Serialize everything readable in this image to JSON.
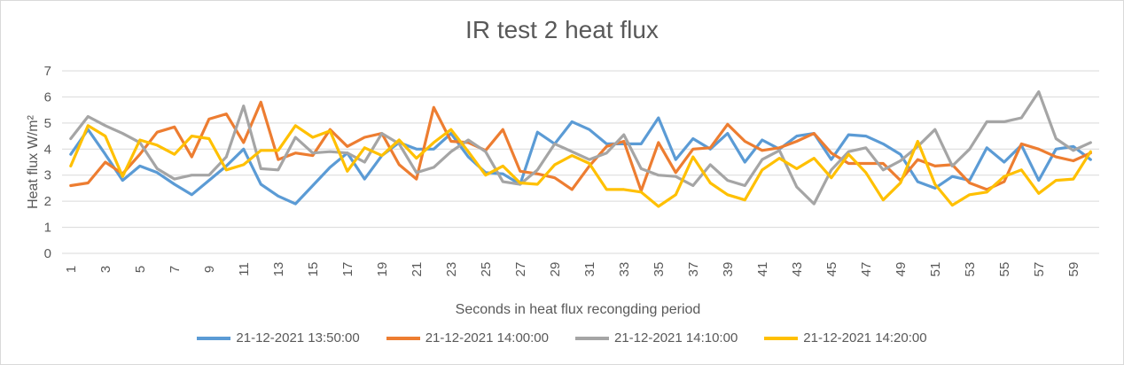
{
  "chart_data": {
    "type": "line",
    "title": "IR test 2 heat flux",
    "xlabel": "Seconds in heat flux recongding period",
    "ylabel": "Heat flux W/m²",
    "ylim": [
      0,
      7
    ],
    "yticks": [
      "0",
      "1",
      "2",
      "3",
      "4",
      "5",
      "6",
      "7"
    ],
    "x": [
      1,
      2,
      3,
      4,
      5,
      6,
      7,
      8,
      9,
      10,
      11,
      12,
      13,
      14,
      15,
      16,
      17,
      18,
      19,
      20,
      21,
      22,
      23,
      24,
      25,
      26,
      27,
      28,
      29,
      30,
      31,
      32,
      33,
      34,
      35,
      36,
      37,
      38,
      39,
      40,
      41,
      42,
      43,
      44,
      45,
      46,
      47,
      48,
      49,
      50,
      51,
      52,
      53,
      54,
      55,
      56,
      57,
      58,
      59,
      60
    ],
    "xtick_labels": [
      "1",
      "3",
      "5",
      "7",
      "9",
      "11",
      "13",
      "15",
      "17",
      "19",
      "21",
      "23",
      "25",
      "27",
      "29",
      "31",
      "33",
      "35",
      "37",
      "39",
      "41",
      "43",
      "45",
      "47",
      "49",
      "51",
      "53",
      "55",
      "57",
      "59"
    ],
    "grid": true,
    "legend_position": "bottom",
    "series": [
      {
        "name": "21-12-2021 13:50:00",
        "color": "#5b9bd5",
        "values": [
          3.8,
          4.75,
          3.8,
          2.8,
          3.35,
          3.1,
          2.65,
          2.25,
          2.8,
          3.35,
          4.0,
          2.65,
          2.2,
          1.9,
          2.6,
          3.3,
          3.85,
          2.85,
          3.75,
          4.25,
          4.0,
          4.0,
          4.6,
          3.7,
          3.1,
          3.05,
          2.65,
          4.65,
          4.2,
          5.05,
          4.75,
          4.2,
          4.2,
          4.2,
          5.2,
          3.6,
          4.4,
          4.0,
          4.6,
          3.5,
          4.35,
          4.0,
          4.5,
          4.6,
          3.6,
          4.55,
          4.5,
          4.2,
          3.8,
          2.75,
          2.5,
          2.95,
          2.8,
          4.05,
          3.5,
          4.15,
          2.8,
          4.0,
          4.1,
          3.6
        ]
      },
      {
        "name": "21-12-2021 14:00:00",
        "color": "#ed7d31",
        "values": [
          2.6,
          2.7,
          3.5,
          3.05,
          3.8,
          4.65,
          4.85,
          3.7,
          5.15,
          5.35,
          4.25,
          5.8,
          3.6,
          3.85,
          3.75,
          4.75,
          4.1,
          4.45,
          4.6,
          3.4,
          2.85,
          5.6,
          4.3,
          4.25,
          3.95,
          4.75,
          3.15,
          3.05,
          2.9,
          2.45,
          3.35,
          4.1,
          4.3,
          2.4,
          4.25,
          3.1,
          4.0,
          4.05,
          4.95,
          4.3,
          3.95,
          4.05,
          4.3,
          4.6,
          3.85,
          3.45,
          3.45,
          3.45,
          2.8,
          3.6,
          3.35,
          3.4,
          2.7,
          2.45,
          2.75,
          4.2,
          4.0,
          3.7,
          3.55,
          3.85
        ]
      },
      {
        "name": "21-12-2021 14:10:00",
        "color": "#a5a5a5",
        "values": [
          4.4,
          5.25,
          4.9,
          4.6,
          4.25,
          3.25,
          2.85,
          3.0,
          3.0,
          3.7,
          5.65,
          3.25,
          3.2,
          4.45,
          3.85,
          3.9,
          3.85,
          3.5,
          4.6,
          4.2,
          3.1,
          3.3,
          3.9,
          4.35,
          3.9,
          2.75,
          2.65,
          3.2,
          4.2,
          3.9,
          3.6,
          3.85,
          4.55,
          3.25,
          3.0,
          2.95,
          2.6,
          3.4,
          2.8,
          2.6,
          3.6,
          3.95,
          2.55,
          1.9,
          3.2,
          3.9,
          4.05,
          3.2,
          3.55,
          4.1,
          4.75,
          3.35,
          4.0,
          5.05,
          5.05,
          5.2,
          6.2,
          4.4,
          3.95,
          4.25
        ]
      },
      {
        "name": "21-12-2021 14:20:00",
        "color": "#ffc000",
        "values": [
          3.35,
          4.9,
          4.5,
          2.95,
          4.35,
          4.15,
          3.8,
          4.5,
          4.4,
          3.2,
          3.4,
          3.95,
          3.95,
          4.9,
          4.45,
          4.7,
          3.15,
          4.05,
          3.75,
          4.35,
          3.65,
          4.25,
          4.75,
          3.9,
          3.0,
          3.35,
          2.7,
          2.65,
          3.4,
          3.75,
          3.45,
          2.45,
          2.45,
          2.35,
          1.8,
          2.25,
          3.7,
          2.7,
          2.25,
          2.05,
          3.2,
          3.65,
          3.25,
          3.65,
          2.9,
          3.8,
          3.1,
          2.05,
          2.7,
          4.3,
          2.65,
          1.85,
          2.25,
          2.35,
          2.95,
          3.2,
          2.3,
          2.8,
          2.85,
          3.9
        ]
      }
    ]
  }
}
